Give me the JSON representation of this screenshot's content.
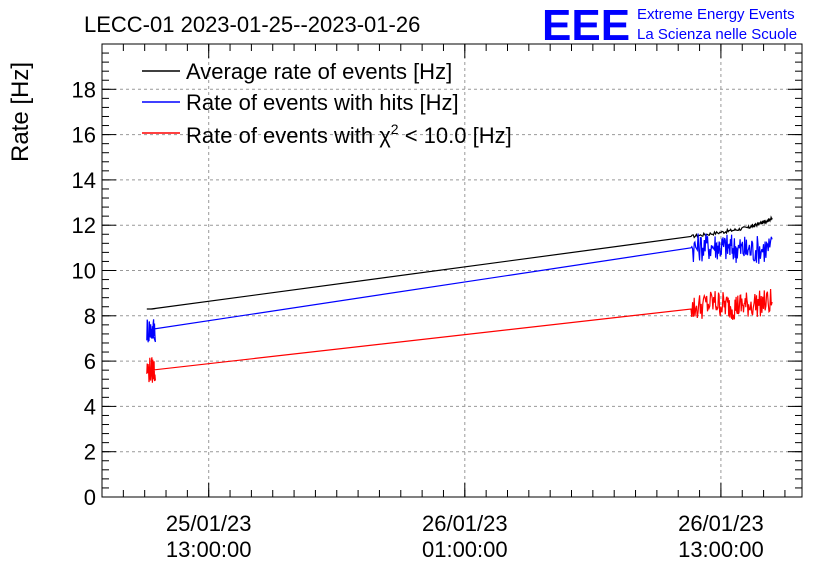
{
  "chart_data": {
    "type": "line",
    "title": "LECC-01 2023-01-25--2023-01-26",
    "ylabel": "Rate [Hz]",
    "xlabel": "",
    "ylim": [
      0,
      20
    ],
    "xlim_hours_since_2023-01-25T00:00": [
      8.0,
      40.8
    ],
    "grid": true,
    "legend_position": "top-left",
    "y_ticks": [
      0,
      2,
      4,
      6,
      8,
      10,
      12,
      14,
      16,
      18
    ],
    "x_ticks": [
      {
        "line1": "25/01/23",
        "line2": "13:00:00",
        "hour": 13
      },
      {
        "line1": "26/01/23",
        "line2": "01:00:00",
        "hour": 25
      },
      {
        "line1": "26/01/23",
        "line2": "13:00:00",
        "hour": 37
      }
    ],
    "series": [
      {
        "name": "Average rate of events [Hz]",
        "color": "#000000",
        "points": [
          [
            10.3,
            8.3
          ],
          [
            35.6,
            11.5
          ],
          [
            37.1,
            11.7
          ],
          [
            38.3,
            11.9
          ],
          [
            38.9,
            12.1
          ],
          [
            39.4,
            12.3
          ]
        ]
      },
      {
        "name": "Rate of events with hits [Hz]",
        "color": "#0000ff",
        "points": [
          [
            10.3,
            7.4
          ],
          [
            35.6,
            11.0
          ],
          [
            36.7,
            11.1
          ],
          [
            37.5,
            11.0
          ],
          [
            38.3,
            10.9
          ],
          [
            39.4,
            11.0
          ]
        ]
      },
      {
        "name": "Rate of events with chi2 < 10.0 [Hz]",
        "color": "#ff0000",
        "points": [
          [
            10.3,
            5.6
          ],
          [
            35.6,
            8.3
          ],
          [
            36.7,
            8.6
          ],
          [
            37.5,
            8.4
          ],
          [
            38.3,
            8.5
          ],
          [
            39.4,
            8.6
          ]
        ]
      }
    ]
  },
  "legend": {
    "items": [
      {
        "text": "Average rate of events [Hz]",
        "color": "#000000"
      },
      {
        "text": "Rate of events with hits [Hz]",
        "color": "#0000ff"
      },
      {
        "text_pre": "Rate of events with ",
        "text_chi": "χ",
        "text_sup": "2",
        "text_post": " < 10.0 [Hz]",
        "color": "#ff0000"
      }
    ]
  },
  "brand": {
    "logo": "EEE",
    "line1": "Extreme Energy Events",
    "line2": "La Scienza nelle Scuole",
    "color": "#0000ff"
  }
}
